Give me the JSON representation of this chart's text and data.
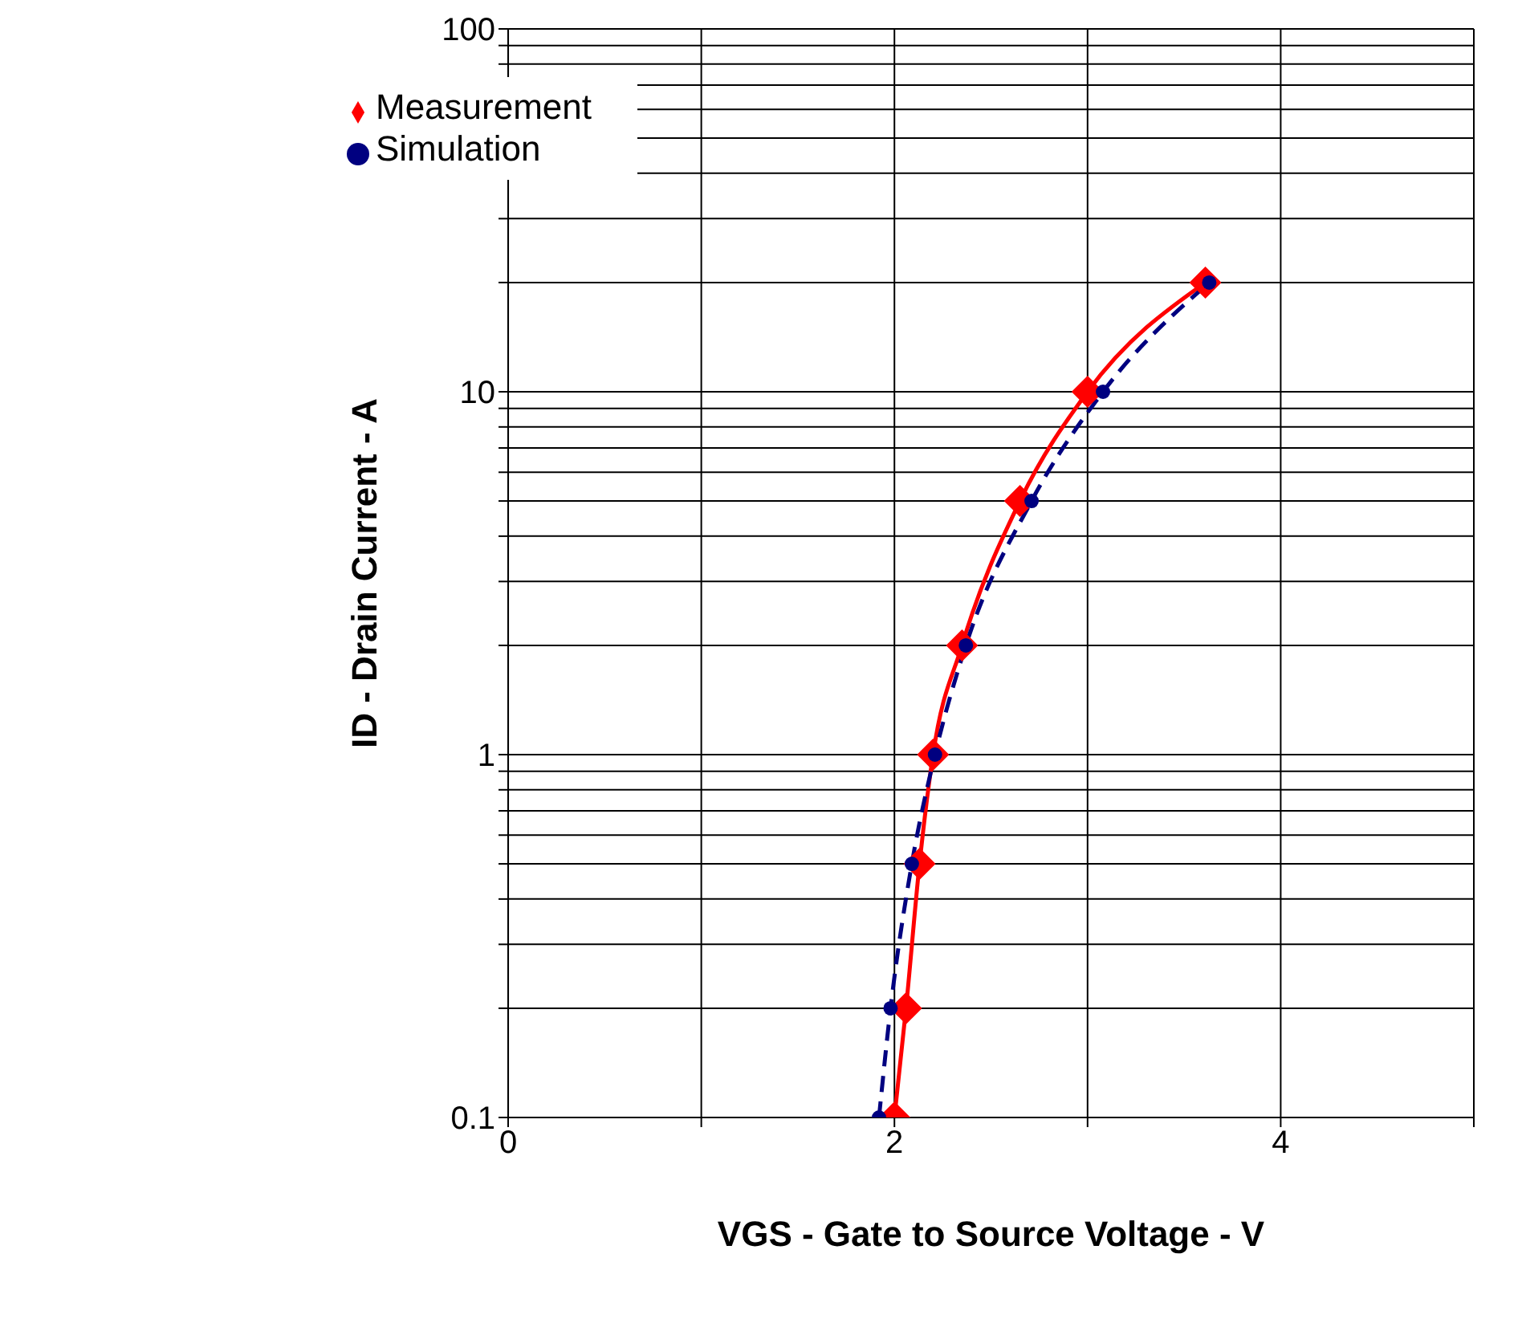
{
  "chart_data": {
    "type": "line",
    "xlabel": "VGS - Gate to Source Voltage - V",
    "ylabel": "ID - Drain Current - A",
    "log": "y",
    "grid": true,
    "legend": "top left",
    "xlim": [
      0,
      5
    ],
    "xticks": [
      0,
      {
        "value": 1,
        "label": null
      },
      2,
      {
        "value": 3,
        "label": null
      },
      4,
      {
        "value": 5,
        "label": null
      }
    ],
    "ylim": [
      0.1,
      100
    ],
    "yticks": [
      0.1,
      {
        "value": 0.2,
        "label": null
      },
      {
        "value": 0.3,
        "label": null
      },
      {
        "value": 0.4,
        "label": null
      },
      {
        "value": 0.5,
        "label": null
      },
      {
        "value": 0.6,
        "label": null
      },
      {
        "value": 0.7,
        "label": null
      },
      {
        "value": 0.8,
        "label": null
      },
      {
        "value": 0.9,
        "label": null
      },
      1,
      {
        "value": 2,
        "label": null
      },
      {
        "value": 3,
        "label": null
      },
      {
        "value": 4,
        "label": null
      },
      {
        "value": 5,
        "label": null
      },
      {
        "value": 6,
        "label": null
      },
      {
        "value": 7,
        "label": null
      },
      {
        "value": 8,
        "label": null
      },
      {
        "value": 9,
        "label": null
      },
      10,
      {
        "value": 20,
        "label": null
      },
      {
        "value": 30,
        "label": null
      },
      {
        "value": 40,
        "label": null
      },
      {
        "value": 50,
        "label": null
      },
      {
        "value": 60,
        "label": null
      },
      {
        "value": 70,
        "label": null
      },
      {
        "value": 80,
        "label": null
      },
      {
        "value": 90,
        "label": null
      },
      100
    ],
    "series": [
      {
        "name": "Measurement",
        "color": "#ff0000",
        "marker": "diamond",
        "line_style": "solid",
        "x": [
          2.0,
          2.06,
          2.13,
          2.2,
          2.35,
          2.65,
          3.0,
          3.61
        ],
        "values": [
          0.1,
          0.2,
          0.5,
          1,
          2,
          5,
          10,
          20
        ]
      },
      {
        "name": "Simulation",
        "color": "#000080",
        "marker": "circle",
        "line_style": "dashed",
        "x": [
          1.92,
          1.98,
          2.09,
          2.21,
          2.37,
          2.71,
          3.08,
          3.63
        ],
        "values": [
          0.1,
          0.2,
          0.5,
          1,
          2,
          5,
          10,
          20
        ]
      }
    ]
  }
}
